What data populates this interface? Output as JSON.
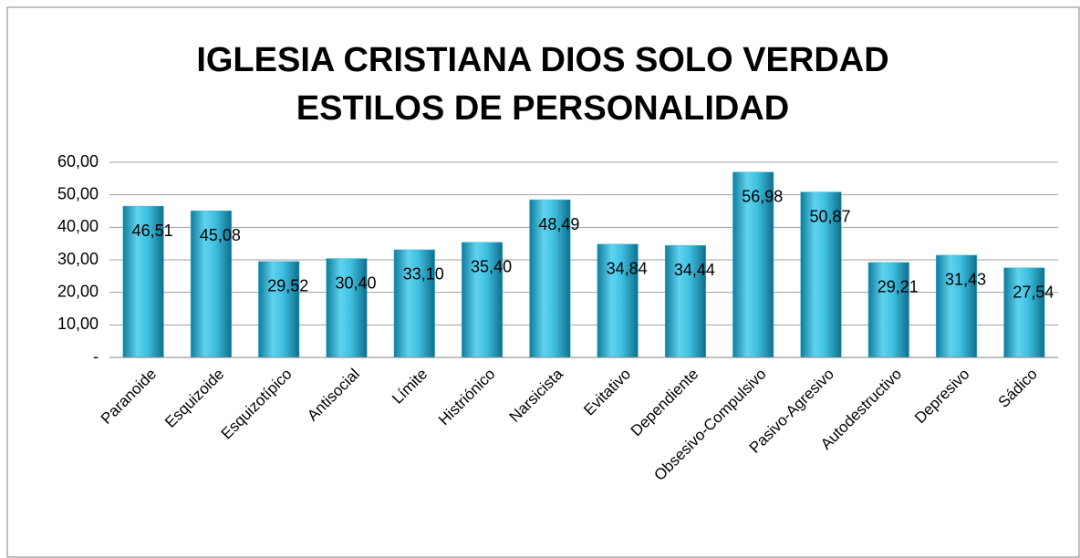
{
  "chart_data": {
    "type": "bar",
    "title": [
      "IGLESIA CRISTIANA DIOS SOLO VERDAD",
      "ESTILOS DE PERSONALIDAD"
    ],
    "categories": [
      "Paranoide",
      "Esquizoide",
      "Esquizotípico",
      "Antisocial",
      "Límite",
      "Histriónico",
      "Narsicista",
      "Evitativo",
      "Dependiente",
      "Obsesivo-Compulsivo",
      "Pasivo-Agresivo",
      "Autodestructivo",
      "Depresivo",
      "Sádico"
    ],
    "values": [
      46.51,
      45.08,
      29.52,
      30.4,
      33.1,
      35.4,
      48.49,
      34.84,
      34.44,
      56.98,
      50.87,
      29.21,
      31.43,
      27.54
    ],
    "value_labels": [
      "46,51",
      "45,08",
      "29,52",
      "30,40",
      "33,10",
      "35,40",
      "48,49",
      "34,84",
      "34,44",
      "56,98",
      "50,87",
      "29,21",
      "31,43",
      "27,54"
    ],
    "color": "#33b5d6",
    "ylim": [
      0,
      60
    ],
    "yticks": [
      {
        "value": 0,
        "label": "-"
      },
      {
        "value": 10,
        "label": "10,00"
      },
      {
        "value": 20,
        "label": "20,00"
      },
      {
        "value": 30,
        "label": "30,00"
      },
      {
        "value": 40,
        "label": "40,00"
      },
      {
        "value": 50,
        "label": "50,00"
      },
      {
        "value": 60,
        "label": "60,00"
      }
    ],
    "grid": true
  }
}
